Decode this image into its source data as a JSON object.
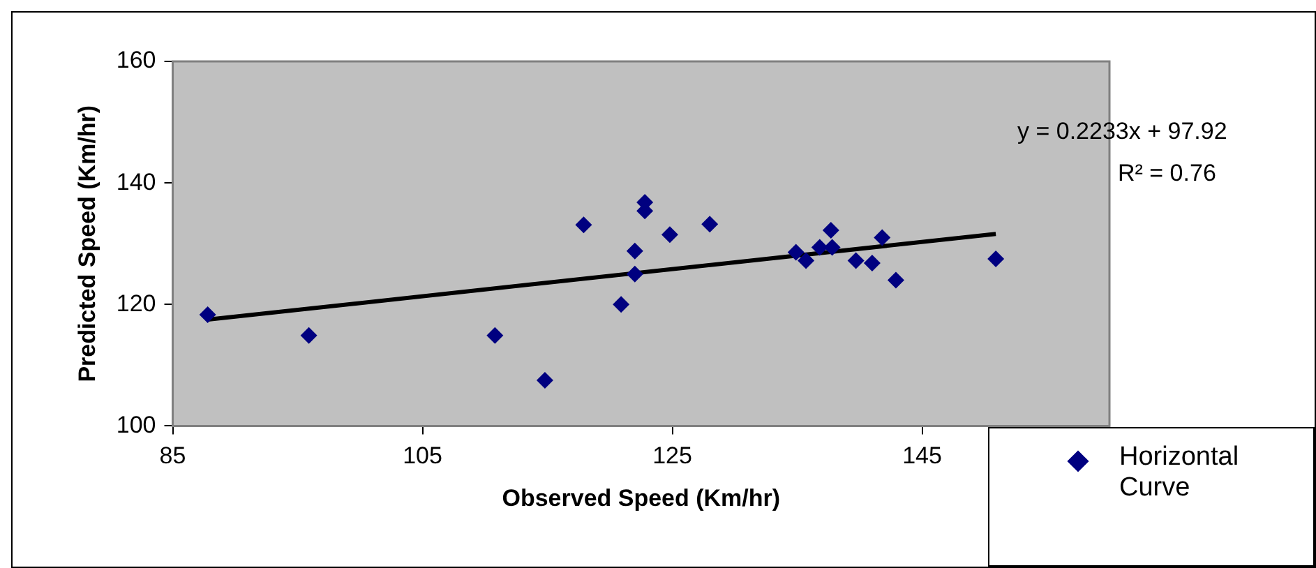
{
  "chart_data": {
    "type": "scatter",
    "xlabel": "Observed Speed (Km/hr)",
    "ylabel": "Predicted Speed (Km/hr)",
    "xlim": [
      85,
      160
    ],
    "xticks": [
      85,
      105,
      125,
      145
    ],
    "ylim": [
      100,
      160
    ],
    "yticks": [
      100,
      120,
      140,
      160
    ],
    "legend": "bottom right",
    "marker": "diamond",
    "annotations": [
      "y = 0.2233x + 97.92",
      "R² = 0.76"
    ],
    "series": [
      {
        "name": "Horizontal Curve",
        "color": "#000080",
        "x": [
          87.8,
          95.9,
          110.8,
          114.8,
          117.9,
          120.9,
          122.0,
          122.0,
          122.8,
          122.8,
          124.8,
          128.0,
          134.9,
          135.7,
          136.8,
          137.7,
          137.8,
          139.7,
          141.0,
          141.8,
          142.9,
          150.9
        ],
        "values": [
          118.3,
          114.9,
          114.9,
          107.5,
          133.1,
          120.0,
          128.8,
          125.0,
          136.8,
          135.4,
          131.5,
          133.2,
          128.6,
          127.2,
          129.4,
          132.2,
          129.4,
          127.2,
          126.8,
          131.0,
          124.0,
          127.5
        ]
      },
      {
        "type": "line",
        "color": "#000000",
        "marker": "none",
        "line_style": "solid",
        "x": [
          87.8,
          150.9
        ],
        "values": [
          117.5,
          131.6
        ]
      }
    ]
  }
}
